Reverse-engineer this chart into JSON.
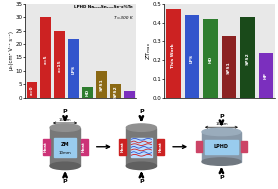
{
  "chart1": {
    "title_line1": "LPHD Na₀.₀₃Sn₀.₉₇Se-x%Te",
    "title_line2": "T=300 K",
    "ylabel": "μₕ(cm² V⁻¹ s⁻¹)",
    "ylim": [
      0,
      35
    ],
    "yticks": [
      0,
      5,
      10,
      15,
      20,
      25,
      30,
      35
    ],
    "categories": [
      "x=0",
      "x=5",
      "x=15",
      "LPS",
      "HD",
      "SPS1",
      "SPS2",
      "HP"
    ],
    "values": [
      6,
      30,
      25,
      22,
      4,
      10,
      5,
      2.5
    ],
    "colors": [
      "#cc2222",
      "#cc2222",
      "#cc2222",
      "#3355cc",
      "#2e7d2e",
      "#8b6914",
      "#8b6914",
      "#7b2fbe"
    ],
    "bg": "#e8e8e8"
  },
  "chart2": {
    "ylabel": "ZTₘₐₓ",
    "ylim": [
      0.0,
      0.5
    ],
    "yticks": [
      0.0,
      0.1,
      0.2,
      0.3,
      0.4,
      0.5
    ],
    "categories": [
      "This Work",
      "LPS",
      "HD",
      "SPS1",
      "SPS2",
      "HP"
    ],
    "values": [
      0.47,
      0.44,
      0.42,
      0.33,
      0.43,
      0.24
    ],
    "colors": [
      "#cc2222",
      "#3355cc",
      "#2e7d2e",
      "#8b2222",
      "#1a4a1a",
      "#7b2fbe"
    ],
    "bg": "#e8e8e8"
  },
  "diagram": {
    "arrow_color": "#000000",
    "heat_color_left": "#cc3377",
    "heat_color_right": "#cc3377",
    "heat_color_red": "#cc2222",
    "cylinder_top_color": "#888888",
    "cylinder_body_color": "#777777",
    "cylinder_bottom_color": "#666666",
    "zm_color": "#99ccee",
    "lphd_color": "#99ccee",
    "lphd_side_color": "#aabbcc",
    "middle_fill": "#bbddff",
    "line_colors": [
      "#cc2222",
      "#3355cc",
      "#cc2222",
      "#3355cc",
      "#cc2222"
    ]
  }
}
